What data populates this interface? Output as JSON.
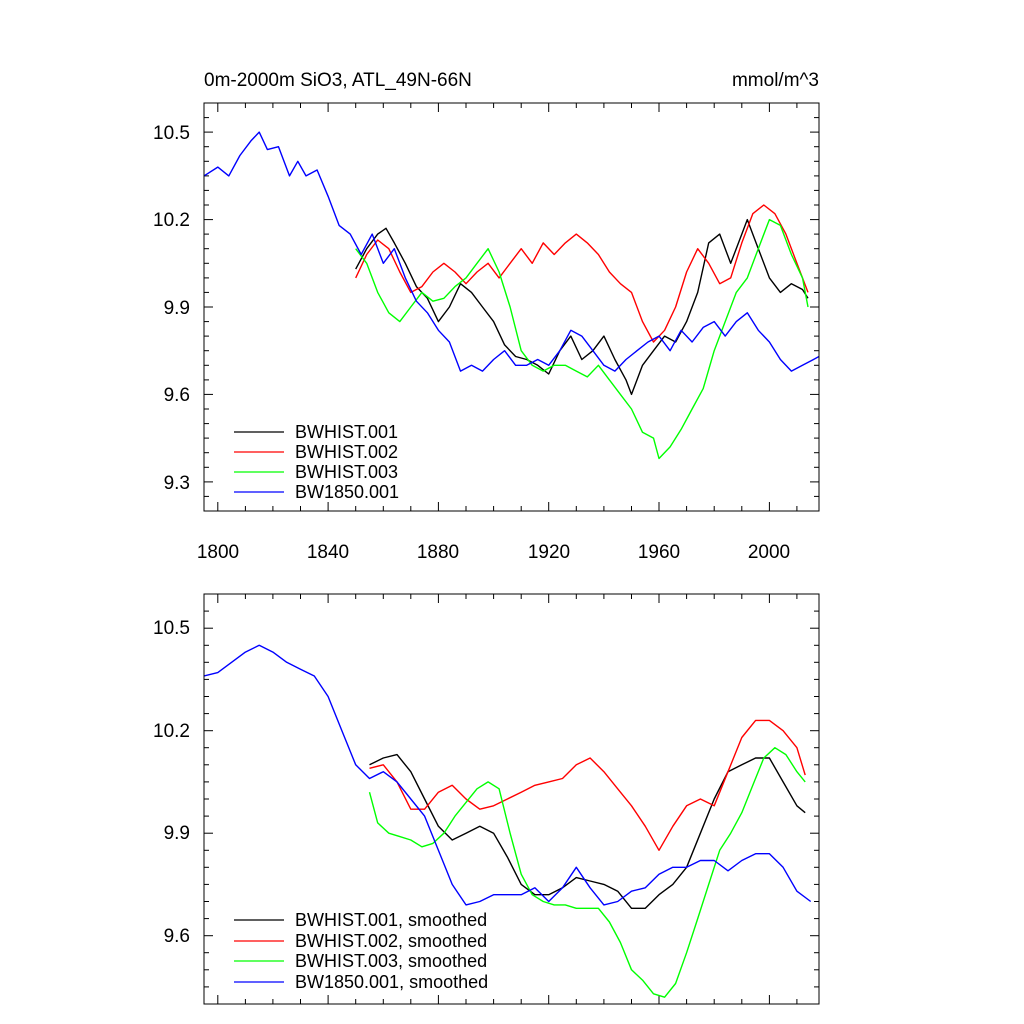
{
  "chart_data": [
    {
      "type": "line",
      "title": "0m-2000m SiO3, ATL_49N-66N",
      "units": "mmol/m^3",
      "xlim": [
        1795,
        2018
      ],
      "ylim": [
        9.2,
        10.6
      ],
      "xticks": [
        1800,
        1840,
        1880,
        1920,
        1960,
        2000
      ],
      "xtick_labels": [
        "1800",
        "1840",
        "1880",
        "1920",
        "1960",
        "2000"
      ],
      "yticks": [
        9.3,
        9.6,
        9.9,
        10.2,
        10.5
      ],
      "ytick_labels": [
        "9.3",
        "9.6",
        "9.9",
        "10.2",
        "10.5"
      ],
      "legend_position": "bottom-left",
      "series": [
        {
          "name": "BWHIST.001",
          "color": "#000000",
          "x": [
            1850,
            1854,
            1858,
            1861,
            1864,
            1868,
            1872,
            1876,
            1880,
            1884,
            1888,
            1892,
            1896,
            1900,
            1904,
            1908,
            1912,
            1916,
            1920,
            1924,
            1928,
            1932,
            1936,
            1940,
            1944,
            1948,
            1950,
            1954,
            1958,
            1962,
            1966,
            1970,
            1974,
            1978,
            1982,
            1986,
            1990,
            1992,
            1996,
            2000,
            2004,
            2008,
            2012,
            2014
          ],
          "y": [
            10.03,
            10.1,
            10.15,
            10.17,
            10.12,
            10.05,
            9.97,
            9.93,
            9.85,
            9.9,
            9.98,
            9.95,
            9.9,
            9.85,
            9.77,
            9.73,
            9.72,
            9.7,
            9.67,
            9.75,
            9.8,
            9.72,
            9.75,
            9.8,
            9.72,
            9.65,
            9.6,
            9.7,
            9.75,
            9.8,
            9.78,
            9.85,
            9.95,
            10.12,
            10.15,
            10.05,
            10.15,
            10.2,
            10.1,
            10.0,
            9.95,
            9.98,
            9.96,
            9.93
          ]
        },
        {
          "name": "BWHIST.002",
          "color": "#ff0000",
          "x": [
            1850,
            1854,
            1858,
            1862,
            1866,
            1870,
            1874,
            1878,
            1882,
            1886,
            1890,
            1894,
            1898,
            1902,
            1906,
            1910,
            1914,
            1918,
            1922,
            1926,
            1930,
            1934,
            1938,
            1942,
            1946,
            1950,
            1954,
            1958,
            1962,
            1966,
            1970,
            1974,
            1978,
            1982,
            1986,
            1990,
            1994,
            1998,
            2002,
            2006,
            2010,
            2014
          ],
          "y": [
            10.0,
            10.08,
            10.13,
            10.1,
            10.02,
            9.95,
            9.97,
            10.02,
            10.05,
            10.02,
            9.98,
            10.02,
            10.05,
            10.0,
            10.05,
            10.1,
            10.05,
            10.12,
            10.08,
            10.12,
            10.15,
            10.12,
            10.08,
            10.02,
            9.98,
            9.95,
            9.85,
            9.78,
            9.82,
            9.9,
            10.02,
            10.1,
            10.05,
            9.98,
            10.0,
            10.12,
            10.22,
            10.25,
            10.22,
            10.15,
            10.05,
            9.95
          ]
        },
        {
          "name": "BWHIST.003",
          "color": "#00ff00",
          "x": [
            1850,
            1854,
            1858,
            1862,
            1866,
            1870,
            1874,
            1878,
            1882,
            1886,
            1890,
            1894,
            1898,
            1902,
            1906,
            1910,
            1914,
            1918,
            1922,
            1926,
            1930,
            1934,
            1938,
            1942,
            1946,
            1950,
            1954,
            1958,
            1960,
            1964,
            1968,
            1972,
            1976,
            1980,
            1984,
            1988,
            1992,
            1996,
            2000,
            2004,
            2008,
            2012,
            2014
          ],
          "y": [
            10.1,
            10.05,
            9.95,
            9.88,
            9.85,
            9.9,
            9.95,
            9.92,
            9.93,
            9.97,
            10.0,
            10.05,
            10.1,
            10.02,
            9.9,
            9.75,
            9.7,
            9.68,
            9.7,
            9.7,
            9.68,
            9.66,
            9.7,
            9.65,
            9.6,
            9.55,
            9.47,
            9.45,
            9.38,
            9.42,
            9.48,
            9.55,
            9.62,
            9.75,
            9.85,
            9.95,
            10.0,
            10.1,
            10.2,
            10.18,
            10.08,
            10.0,
            9.9
          ]
        },
        {
          "name": "BW1850.001",
          "color": "#0000ff",
          "x": [
            1795,
            1800,
            1804,
            1808,
            1812,
            1815,
            1818,
            1822,
            1826,
            1829,
            1832,
            1836,
            1840,
            1844,
            1848,
            1852,
            1856,
            1860,
            1864,
            1868,
            1872,
            1876,
            1880,
            1884,
            1888,
            1892,
            1896,
            1900,
            1904,
            1908,
            1912,
            1916,
            1920,
            1924,
            1928,
            1932,
            1936,
            1940,
            1944,
            1948,
            1952,
            1956,
            1960,
            1964,
            1968,
            1972,
            1976,
            1980,
            1984,
            1988,
            1992,
            1996,
            2000,
            2004,
            2008,
            2012,
            2016,
            2018
          ],
          "y": [
            10.35,
            10.38,
            10.35,
            10.42,
            10.47,
            10.5,
            10.44,
            10.45,
            10.35,
            10.4,
            10.35,
            10.37,
            10.28,
            10.18,
            10.15,
            10.08,
            10.15,
            10.05,
            10.1,
            10.0,
            9.92,
            9.88,
            9.82,
            9.78,
            9.68,
            9.7,
            9.68,
            9.72,
            9.75,
            9.7,
            9.7,
            9.72,
            9.7,
            9.75,
            9.82,
            9.8,
            9.75,
            9.7,
            9.68,
            9.72,
            9.75,
            9.78,
            9.8,
            9.75,
            9.82,
            9.78,
            9.83,
            9.85,
            9.8,
            9.85,
            9.88,
            9.82,
            9.78,
            9.72,
            9.68,
            9.7,
            9.72,
            9.73
          ]
        }
      ]
    },
    {
      "type": "line",
      "title": "",
      "xlim": [
        1795,
        2018
      ],
      "ylim": [
        9.4,
        10.6
      ],
      "xticks": [
        1800,
        1840,
        1880,
        1920,
        1960,
        2000
      ],
      "yticks": [
        9.6,
        9.9,
        10.2,
        10.5
      ],
      "ytick_labels": [
        "9.6",
        "9.9",
        "10.2",
        "10.5"
      ],
      "legend_position": "bottom-left",
      "series": [
        {
          "name": "BWHIST.001, smoothed",
          "color": "#000000",
          "x": [
            1855,
            1860,
            1865,
            1870,
            1875,
            1880,
            1885,
            1890,
            1895,
            1900,
            1905,
            1910,
            1915,
            1920,
            1925,
            1930,
            1935,
            1940,
            1945,
            1950,
            1955,
            1960,
            1965,
            1970,
            1975,
            1980,
            1985,
            1990,
            1995,
            2000,
            2005,
            2010,
            2013
          ],
          "y": [
            10.1,
            10.12,
            10.13,
            10.08,
            10.0,
            9.92,
            9.88,
            9.9,
            9.92,
            9.9,
            9.83,
            9.75,
            9.72,
            9.72,
            9.74,
            9.77,
            9.76,
            9.75,
            9.73,
            9.68,
            9.68,
            9.72,
            9.75,
            9.8,
            9.9,
            10.0,
            10.08,
            10.1,
            10.12,
            10.12,
            10.05,
            9.98,
            9.96
          ]
        },
        {
          "name": "BWHIST.002, smoothed",
          "color": "#ff0000",
          "x": [
            1855,
            1860,
            1865,
            1870,
            1875,
            1880,
            1885,
            1890,
            1895,
            1900,
            1905,
            1910,
            1915,
            1920,
            1925,
            1930,
            1935,
            1940,
            1945,
            1950,
            1955,
            1960,
            1965,
            1970,
            1975,
            1980,
            1985,
            1990,
            1995,
            2000,
            2005,
            2010,
            2013
          ],
          "y": [
            10.09,
            10.1,
            10.05,
            9.97,
            9.97,
            10.02,
            10.04,
            10.0,
            9.97,
            9.98,
            10.0,
            10.02,
            10.04,
            10.05,
            10.06,
            10.1,
            10.12,
            10.08,
            10.03,
            9.98,
            9.92,
            9.85,
            9.92,
            9.98,
            10.0,
            9.98,
            10.08,
            10.18,
            10.23,
            10.23,
            10.2,
            10.15,
            10.07
          ]
        },
        {
          "name": "BWHIST.003, smoothed",
          "color": "#00ff00",
          "x": [
            1855,
            1858,
            1862,
            1866,
            1870,
            1874,
            1878,
            1882,
            1886,
            1890,
            1894,
            1898,
            1902,
            1906,
            1910,
            1914,
            1918,
            1922,
            1926,
            1930,
            1934,
            1938,
            1942,
            1946,
            1950,
            1954,
            1958,
            1962,
            1966,
            1970,
            1974,
            1978,
            1982,
            1986,
            1990,
            1994,
            1998,
            2002,
            2006,
            2010,
            2013
          ],
          "y": [
            10.02,
            9.93,
            9.9,
            9.89,
            9.88,
            9.86,
            9.87,
            9.9,
            9.95,
            9.99,
            10.03,
            10.05,
            10.03,
            9.9,
            9.78,
            9.72,
            9.7,
            9.69,
            9.69,
            9.68,
            9.68,
            9.68,
            9.64,
            9.58,
            9.5,
            9.47,
            9.43,
            9.42,
            9.46,
            9.55,
            9.65,
            9.75,
            9.85,
            9.9,
            9.96,
            10.04,
            10.12,
            10.15,
            10.13,
            10.08,
            10.05
          ]
        },
        {
          "name": "BW1850.001, smoothed",
          "color": "#0000ff",
          "x": [
            1795,
            1800,
            1805,
            1810,
            1815,
            1820,
            1825,
            1830,
            1835,
            1840,
            1845,
            1850,
            1855,
            1860,
            1865,
            1870,
            1875,
            1880,
            1885,
            1890,
            1895,
            1900,
            1905,
            1910,
            1915,
            1920,
            1925,
            1930,
            1935,
            1940,
            1945,
            1950,
            1955,
            1960,
            1965,
            1970,
            1975,
            1980,
            1985,
            1990,
            1995,
            2000,
            2005,
            2010,
            2015
          ],
          "y": [
            10.36,
            10.37,
            10.4,
            10.43,
            10.45,
            10.43,
            10.4,
            10.38,
            10.36,
            10.3,
            10.2,
            10.1,
            10.06,
            10.08,
            10.05,
            10.0,
            9.95,
            9.85,
            9.75,
            9.69,
            9.7,
            9.72,
            9.72,
            9.72,
            9.74,
            9.7,
            9.74,
            9.8,
            9.74,
            9.69,
            9.7,
            9.73,
            9.74,
            9.78,
            9.8,
            9.8,
            9.82,
            9.82,
            9.79,
            9.82,
            9.84,
            9.84,
            9.8,
            9.73,
            9.7
          ]
        }
      ]
    }
  ]
}
